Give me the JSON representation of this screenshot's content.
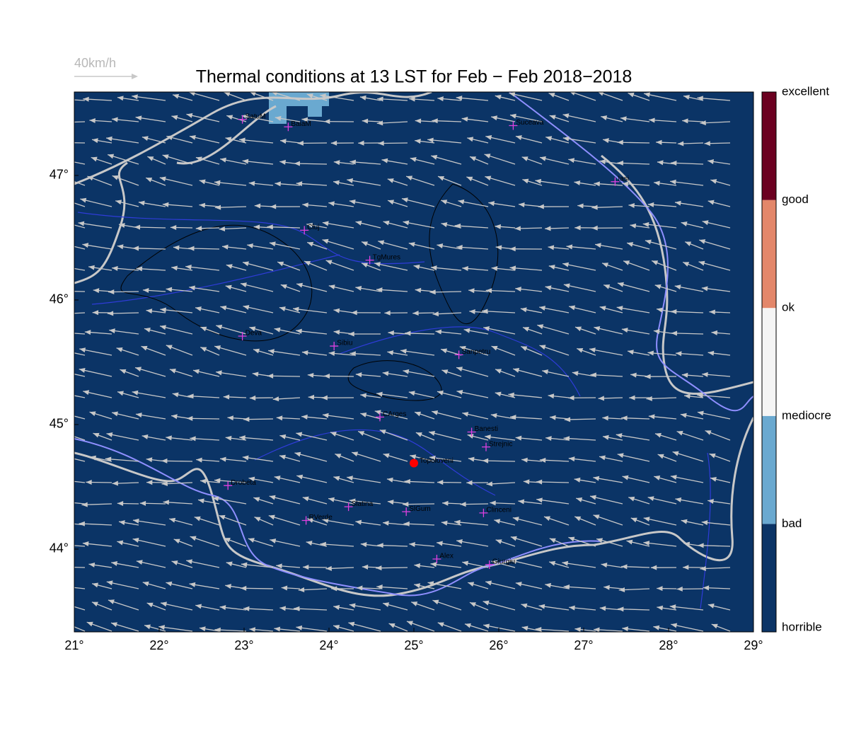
{
  "chart_data": {
    "type": "map",
    "title": "Thermal conditions at 13 LST for Feb − Feb  2018−2018",
    "scale_arrow_label": "40km/h",
    "xlim": [
      21,
      29
    ],
    "ylim": [
      43.335,
      47.67
    ],
    "xticks": [
      {
        "value": 21,
        "label": "21°"
      },
      {
        "value": 22,
        "label": "22°"
      },
      {
        "value": 23,
        "label": "23°"
      },
      {
        "value": 24,
        "label": "24°"
      },
      {
        "value": 25,
        "label": "25°"
      },
      {
        "value": 26,
        "label": "26°"
      },
      {
        "value": 27,
        "label": "27°"
      },
      {
        "value": 28,
        "label": "28°"
      },
      {
        "value": 29,
        "label": "29°"
      }
    ],
    "yticks": [
      {
        "value": 44,
        "label": "44°"
      },
      {
        "value": 45,
        "label": "45°"
      },
      {
        "value": 46,
        "label": "46°"
      },
      {
        "value": 47,
        "label": "47°"
      }
    ],
    "fill_color": "#0b3466",
    "legend": {
      "labels": [
        "horrible",
        "bad",
        "mediocre",
        "ok",
        "good",
        "excellent"
      ],
      "colors": [
        "#0b3466",
        "#6aa9d0",
        "#f5f5f5",
        "#e3876a",
        "#6b0020"
      ]
    },
    "stations": [
      {
        "name": "SatuM",
        "lon": 22.98,
        "lat": 47.45
      },
      {
        "name": "BaiaM",
        "lon": 23.52,
        "lat": 47.39
      },
      {
        "name": "Suceava",
        "lon": 26.17,
        "lat": 47.4
      },
      {
        "name": "Iasi",
        "lon": 27.37,
        "lat": 46.95
      },
      {
        "name": "Cluj",
        "lon": 23.71,
        "lat": 46.56
      },
      {
        "name": "TgMures",
        "lon": 24.48,
        "lat": 46.32
      },
      {
        "name": "Deva",
        "lon": 22.98,
        "lat": 45.71
      },
      {
        "name": "Sibiu",
        "lon": 24.06,
        "lat": 45.63
      },
      {
        "name": "Sanpetru",
        "lon": 25.53,
        "lat": 45.56
      },
      {
        "name": "CArges",
        "lon": 24.6,
        "lat": 45.06
      },
      {
        "name": "Banesti",
        "lon": 25.68,
        "lat": 44.94
      },
      {
        "name": "Strejnic",
        "lon": 25.85,
        "lat": 44.82
      },
      {
        "name": "Drobeta",
        "lon": 22.81,
        "lat": 44.51
      },
      {
        "name": "Slatina",
        "lon": 24.23,
        "lat": 44.34
      },
      {
        "name": "SlGum",
        "lon": 24.91,
        "lat": 44.3
      },
      {
        "name": "Clinceni",
        "lon": 25.82,
        "lat": 44.29
      },
      {
        "name": "RVerde",
        "lon": 23.73,
        "lat": 44.23
      },
      {
        "name": "Alex",
        "lon": 25.27,
        "lat": 43.92
      },
      {
        "name": "Giurgiu",
        "lon": 25.89,
        "lat": 43.875
      }
    ],
    "site": {
      "name": "Topoloveni",
      "lon": 25.0,
      "lat": 44.69,
      "color": "#ff0000"
    }
  }
}
